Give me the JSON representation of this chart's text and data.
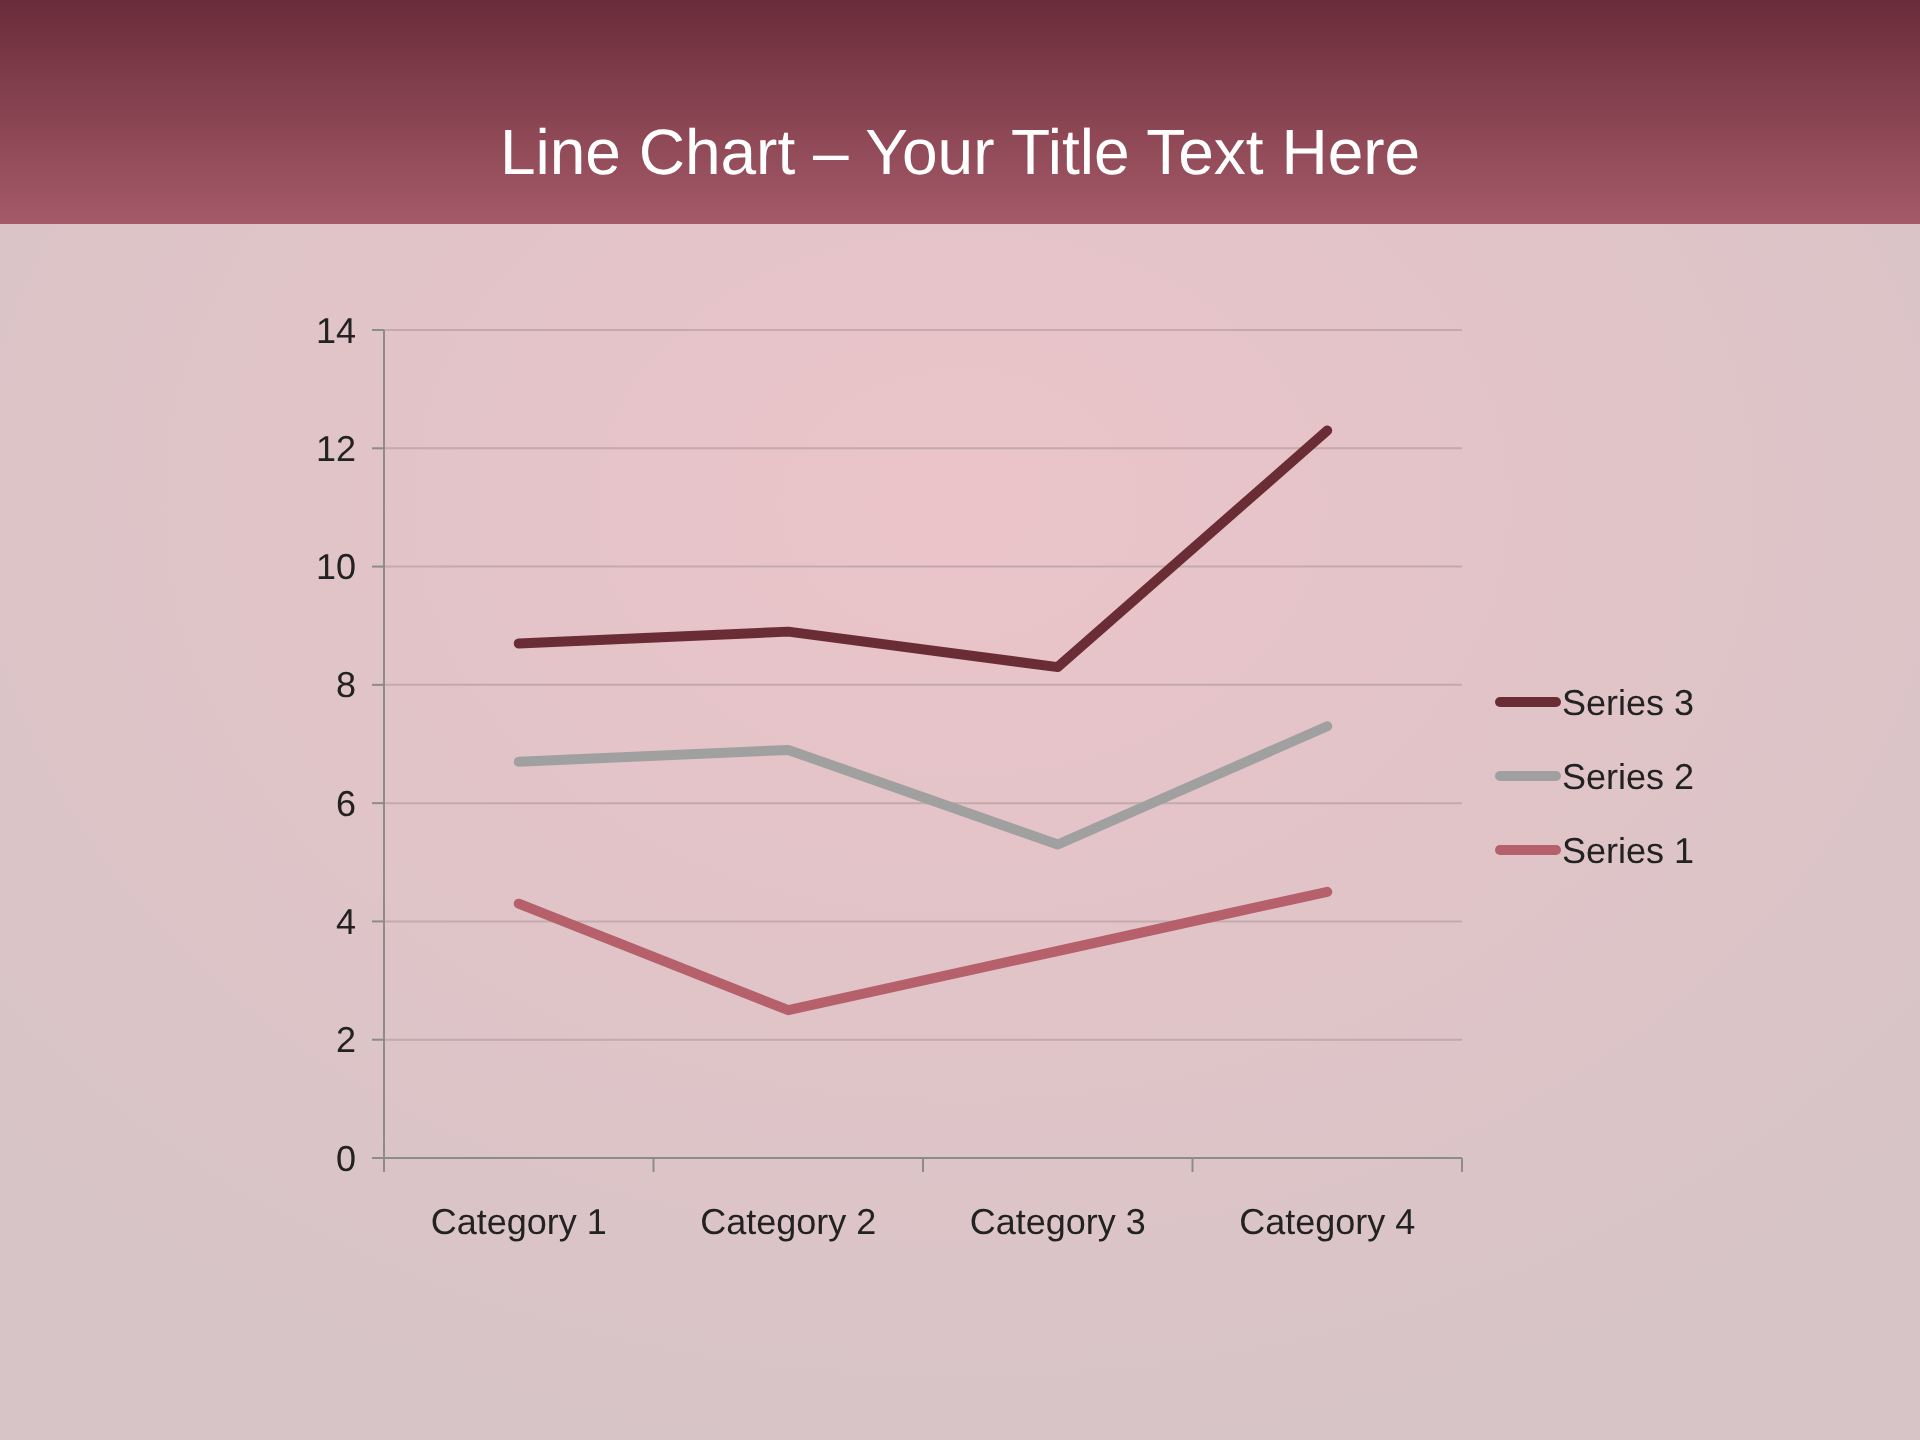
{
  "chart_data": {
    "type": "line",
    "title": "Line Chart – Your Title Text Here",
    "categories": [
      "Category 1",
      "Category 2",
      "Category 3",
      "Category 4"
    ],
    "series": [
      {
        "name": "Series 1",
        "color": "#b5606b",
        "values": [
          4.3,
          2.5,
          3.5,
          4.5
        ]
      },
      {
        "name": "Series 2",
        "color": "#a0a0a0",
        "values": [
          6.7,
          6.9,
          5.3,
          7.3
        ]
      },
      {
        "name": "Series 3",
        "color": "#6b2d35",
        "values": [
          8.7,
          8.9,
          8.3,
          12.3
        ]
      }
    ],
    "ylim": [
      0,
      14
    ],
    "yticks": [
      0,
      2,
      4,
      6,
      8,
      10,
      12,
      14
    ],
    "grid": "y",
    "legend": "right",
    "marker": "none",
    "line_style": "solid"
  }
}
